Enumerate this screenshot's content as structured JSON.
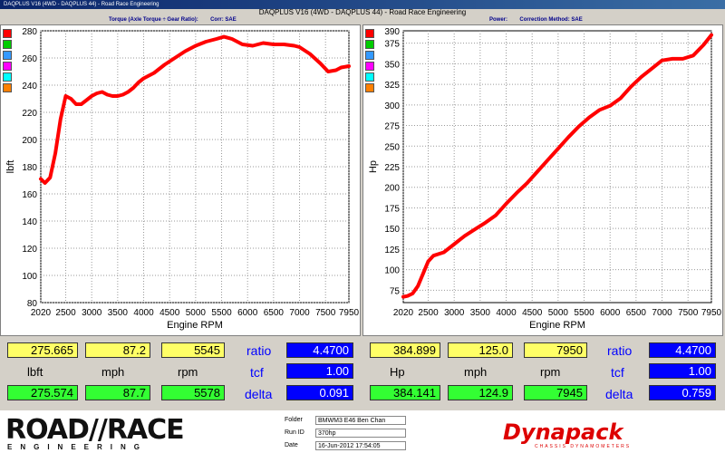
{
  "window": {
    "title": "DAQPLUS V16 (4WD - DAQPLUS 44) - Road Race Engineering",
    "header": "DAQPLUS V16 (4WD - DAQPLUS 44) - Road Race Engineering"
  },
  "left_subheader": {
    "text": "Torque (Axle Torque ÷ Gear Ratio):",
    "corr": "Corr: SAE"
  },
  "right_subheader": {
    "text": "Power:",
    "corr": "Correction Method: SAE"
  },
  "swatch_colors": [
    "#ff0000",
    "#00cc00",
    "#3399ff",
    "#ff00ff",
    "#00ffff",
    "#ff8000"
  ],
  "chart_data": [
    {
      "type": "line",
      "title": "",
      "xlabel": "Engine RPM",
      "ylabel": "lbft",
      "xlim": [
        2020,
        7950
      ],
      "ylim": [
        80,
        280
      ],
      "x_ticks": [
        "2020",
        "2500",
        "3000",
        "3500",
        "4000",
        "4500",
        "5000",
        "5500",
        "6000",
        "6500",
        "7000",
        "7500",
        "7950"
      ],
      "y_ticks": [
        "80",
        "100",
        "120",
        "140",
        "160",
        "180",
        "200",
        "220",
        "240",
        "260",
        "280"
      ],
      "grid": true,
      "line_color": "#ff0000",
      "series": [
        {
          "x": [
            2020,
            2100,
            2200,
            2300,
            2400,
            2500,
            2600,
            2700,
            2800,
            2900,
            3000,
            3100,
            3200,
            3300,
            3400,
            3500,
            3600,
            3700,
            3800,
            3900,
            4000,
            4200,
            4400,
            4600,
            4800,
            5000,
            5200,
            5400,
            5545,
            5700,
            5900,
            6100,
            6300,
            6500,
            6700,
            6900,
            7000,
            7200,
            7400,
            7550,
            7700,
            7800,
            7950
          ],
          "y": [
            171,
            168,
            172,
            190,
            215,
            232,
            230,
            226,
            226,
            229,
            232,
            234,
            235,
            233,
            232,
            232,
            233,
            235,
            238,
            242,
            245,
            249,
            255,
            260,
            265,
            269,
            272,
            274,
            275.6,
            274,
            270,
            269,
            271,
            270,
            270,
            269,
            268,
            263,
            256,
            250,
            251,
            253,
            254
          ]
        }
      ]
    },
    {
      "type": "line",
      "title": "",
      "xlabel": "Engine RPM",
      "ylabel": "Hp",
      "xlim": [
        2020,
        7950
      ],
      "ylim": [
        60,
        390
      ],
      "x_ticks": [
        "2020",
        "2500",
        "3000",
        "3500",
        "4000",
        "4500",
        "5000",
        "5500",
        "6000",
        "6500",
        "7000",
        "7500",
        "7950"
      ],
      "y_ticks": [
        "375",
        "350",
        "325",
        "300",
        "275",
        "250",
        "225",
        "200",
        "175",
        "150",
        "125",
        "100",
        "75"
      ],
      "y_top_label": "390",
      "grid": true,
      "line_color": "#ff0000",
      "series": [
        {
          "x": [
            2020,
            2100,
            2200,
            2300,
            2400,
            2500,
            2600,
            2800,
            3000,
            3200,
            3400,
            3600,
            3800,
            4000,
            4200,
            4400,
            4600,
            4800,
            5000,
            5200,
            5400,
            5600,
            5800,
            6000,
            6200,
            6400,
            6600,
            6800,
            7000,
            7200,
            7400,
            7600,
            7800,
            7950
          ],
          "y": [
            67,
            68,
            71,
            80,
            95,
            110,
            117,
            121,
            131,
            141,
            149,
            157,
            166,
            180,
            193,
            205,
            219,
            233,
            247,
            261,
            274,
            285,
            294,
            299,
            308,
            322,
            334,
            344,
            354,
            356,
            356,
            360,
            373,
            384.9
          ]
        }
      ]
    }
  ],
  "readouts": {
    "left": {
      "top": [
        "275.665",
        "87.2",
        "5545"
      ],
      "units": [
        "lbft",
        "mph",
        "rpm"
      ],
      "bottom": [
        "275.574",
        "87.7",
        "5578"
      ],
      "ratio_label": "ratio",
      "ratio": "4.4700",
      "tcf_label": "tcf",
      "tcf": "1.00",
      "delta_label": "delta",
      "delta": "0.091"
    },
    "right": {
      "top": [
        "384.899",
        "125.0",
        "7950"
      ],
      "units": [
        "Hp",
        "mph",
        "rpm"
      ],
      "bottom": [
        "384.141",
        "124.9",
        "7945"
      ],
      "ratio_label": "ratio",
      "ratio": "4.4700",
      "tcf_label": "tcf",
      "tcf": "1.00",
      "delta_label": "delta",
      "delta": "0.759"
    }
  },
  "footer": {
    "logo_main": "ROAD//RACE",
    "logo_sub": "ENGINEERING",
    "folder_label": "Folder",
    "folder": "BMWM3 E46 Ben Chan",
    "runid_label": "Run ID",
    "runid": "370hp",
    "date_label": "Date",
    "date": "16-Jun-2012  17:54:05",
    "brand": "Dynapack",
    "brand_sub": "CHASSIS DYNAMOMETERS"
  }
}
